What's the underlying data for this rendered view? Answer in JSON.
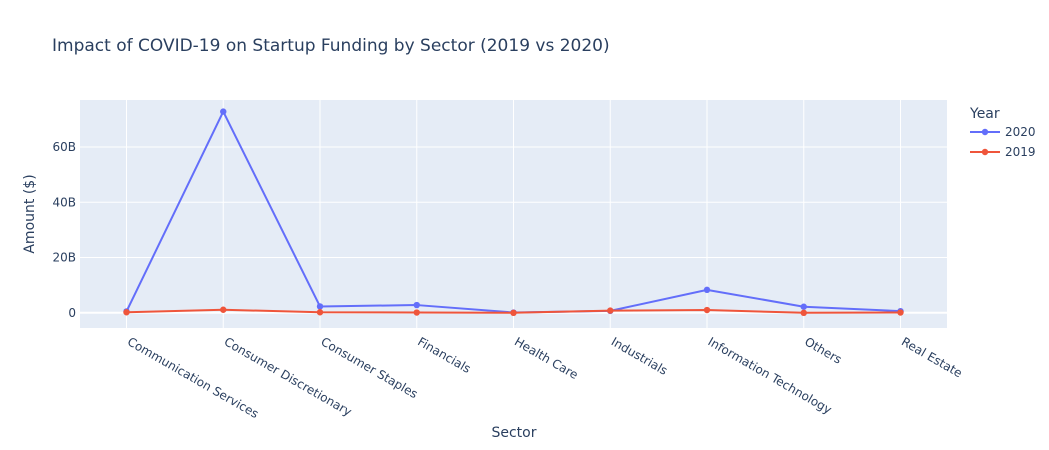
{
  "chart_data": {
    "type": "line",
    "title": "Impact of COVID-19 on Startup Funding by Sector (2019 vs 2020)",
    "xlabel": "Sector",
    "ylabel": "Amount ($)",
    "categories": [
      "Communication Services",
      "Consumer Discretionary",
      "Consumer Staples",
      "Financials",
      "Health Care",
      "Industrials",
      "Information Technology",
      "Others",
      "Real Estate"
    ],
    "ylim": [
      -5.5,
      77
    ],
    "yticks": [
      0,
      20,
      40,
      60
    ],
    "ytick_labels": [
      "0",
      "20B",
      "40B",
      "60B"
    ],
    "y_unit": "B",
    "legend": {
      "title": "Year",
      "placement": "top-right"
    },
    "grid": true,
    "series": [
      {
        "name": "2020",
        "color": "#636efa",
        "values": [
          0.5,
          72.8,
          2.3,
          2.8,
          0.1,
          0.7,
          8.3,
          2.2,
          0.6
        ]
      },
      {
        "name": "2019",
        "color": "#ef553b",
        "values": [
          0.2,
          1.1,
          0.2,
          0.1,
          0.0,
          0.8,
          1.0,
          0.0,
          0.1
        ]
      }
    ],
    "colors": {
      "plot_background": "#e5ecf6",
      "grid": "#ffffff",
      "text": "#2a3f5f"
    }
  }
}
